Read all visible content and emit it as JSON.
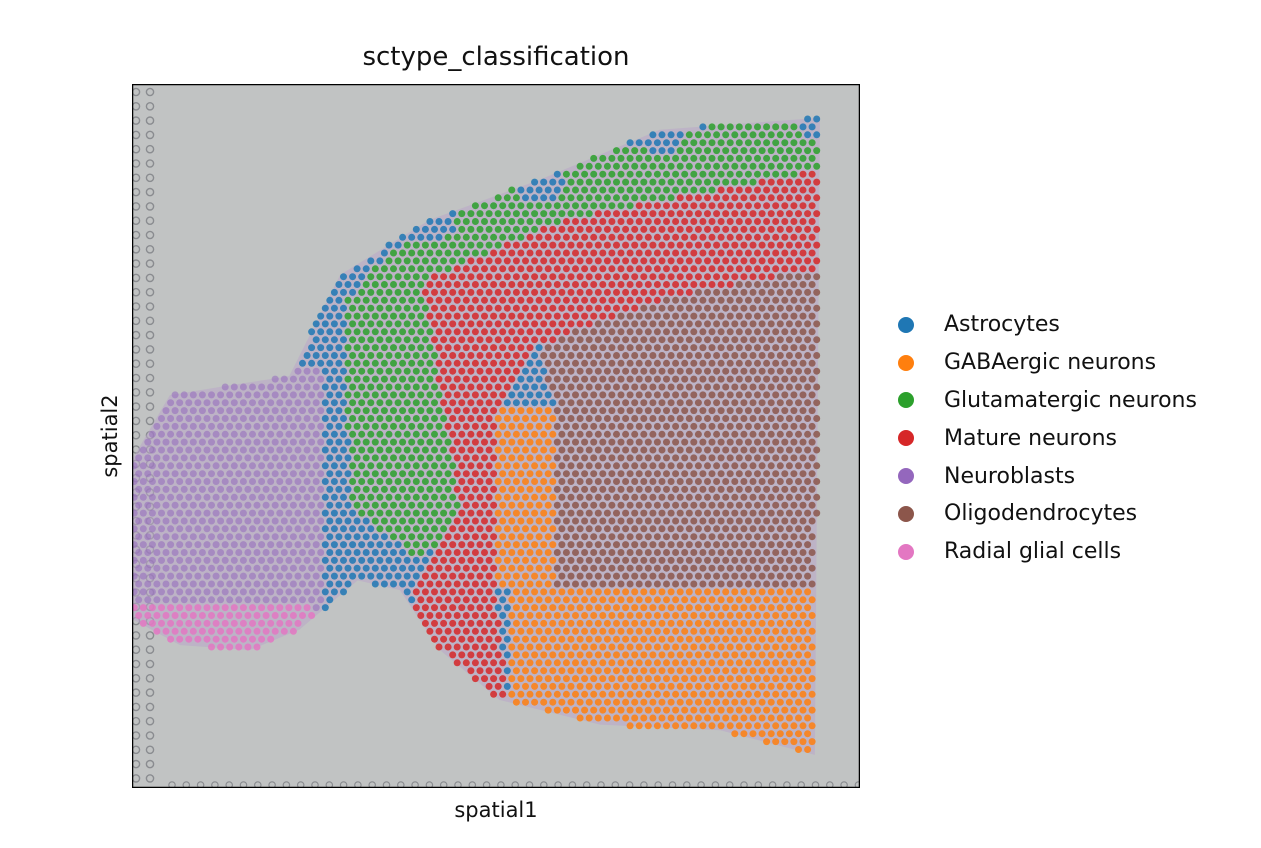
{
  "chart_data": {
    "type": "scatter",
    "title": "sctype_classification",
    "xlabel": "spatial1",
    "ylabel": "spatial2",
    "xlim": [
      0,
      100
    ],
    "ylim": [
      0,
      100
    ],
    "grid": false,
    "legend_position": "right",
    "background": "#c1c3c3",
    "categories": [
      {
        "name": "Astrocytes",
        "color": "#1f77b4"
      },
      {
        "name": "GABAergic neurons",
        "color": "#ff7f0e"
      },
      {
        "name": "Glutamatergic neurons",
        "color": "#2ca02c"
      },
      {
        "name": "Mature neurons",
        "color": "#d62728"
      },
      {
        "name": "Neuroblasts",
        "color": "#9467bd"
      },
      {
        "name": "Oligodendrocytes",
        "color": "#8c564b"
      },
      {
        "name": "Radial glial cells",
        "color": "#e377c2"
      }
    ],
    "tissue_outline": [
      [
        21.6,
        41.5
      ],
      [
        28.6,
        27.1
      ],
      [
        40.9,
        19.3
      ],
      [
        56,
        13.6
      ],
      [
        72.5,
        6.5
      ],
      [
        94.5,
        4.8
      ],
      [
        93.8,
        95.3
      ],
      [
        80.8,
        91.8
      ],
      [
        64.3,
        91
      ],
      [
        50.5,
        87.5
      ],
      [
        42.3,
        80.4
      ],
      [
        36.8,
        71.9
      ],
      [
        31,
        70.5
      ],
      [
        23,
        77.5
      ],
      [
        16.2,
        80.4
      ],
      [
        6.6,
        79.7
      ],
      [
        0,
        76
      ],
      [
        0,
        53.4
      ],
      [
        5.2,
        44.2
      ],
      [
        13.5,
        42.8
      ]
    ],
    "regions": [
      {
        "category": 6,
        "polygon": [
          [
            0,
            74
          ],
          [
            25,
            74
          ],
          [
            25,
            82
          ],
          [
            0,
            82
          ]
        ]
      },
      {
        "category": 4,
        "polygon": [
          [
            0,
            40
          ],
          [
            26,
            40
          ],
          [
            26,
            82
          ],
          [
            0,
            82
          ]
        ]
      },
      {
        "category": 1,
        "polygon": [
          [
            52,
            72
          ],
          [
            96,
            72
          ],
          [
            96,
            97
          ],
          [
            52,
            97
          ]
        ]
      },
      {
        "category": 1,
        "polygon": [
          [
            50,
            46
          ],
          [
            58,
            46
          ],
          [
            58,
            72
          ],
          [
            50,
            72
          ]
        ]
      },
      {
        "category": 5,
        "polygon": [
          [
            56,
            37
          ],
          [
            75,
            30
          ],
          [
            96,
            26
          ],
          [
            96,
            72
          ],
          [
            58,
            72
          ],
          [
            58,
            46
          ]
        ]
      },
      {
        "category": 3,
        "polygon": [
          [
            40,
            28
          ],
          [
            60,
            19
          ],
          [
            96,
            12
          ],
          [
            96,
            26
          ],
          [
            75,
            30
          ],
          [
            56,
            37
          ],
          [
            50,
            46
          ],
          [
            50,
            72
          ],
          [
            52,
            90
          ],
          [
            44,
            86
          ],
          [
            38,
            72
          ],
          [
            45,
            60
          ]
        ]
      },
      {
        "category": 2,
        "polygon": [
          [
            29,
            29
          ],
          [
            50,
            13
          ],
          [
            96,
            2
          ],
          [
            96,
            12
          ],
          [
            60,
            19
          ],
          [
            40,
            28
          ],
          [
            45,
            60
          ],
          [
            40,
            68
          ],
          [
            30,
            60
          ]
        ]
      }
    ],
    "default_category": 0
  }
}
